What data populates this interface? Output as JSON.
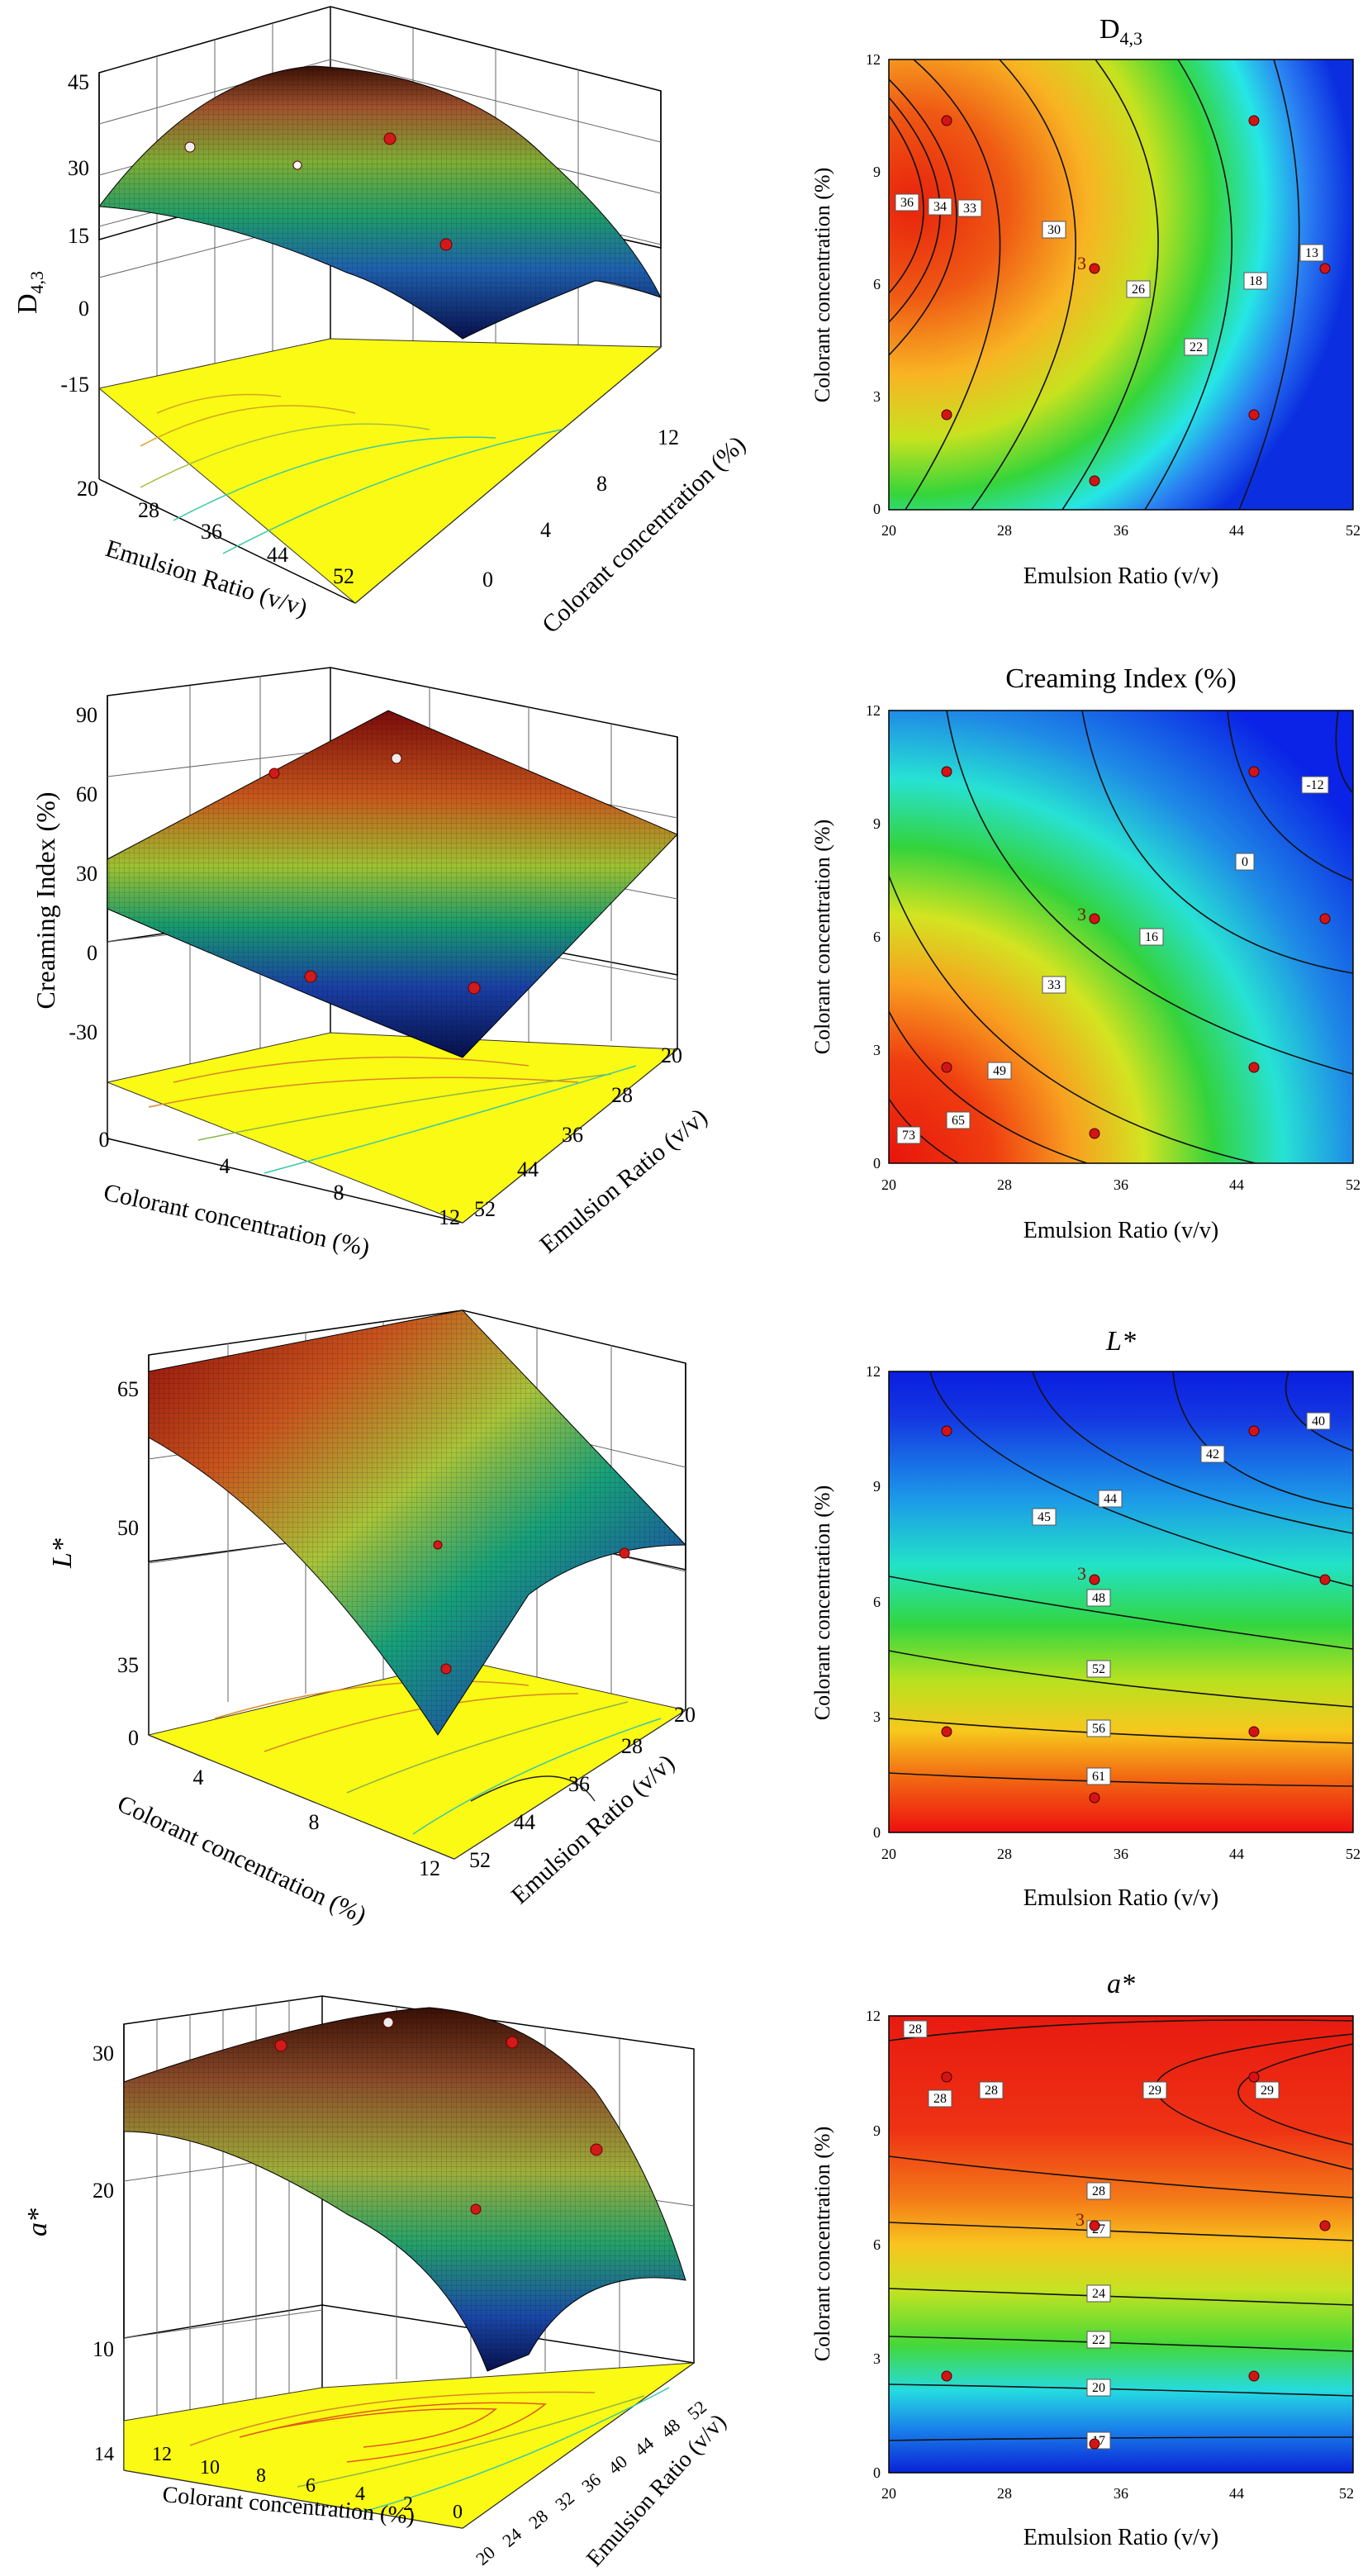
{
  "chart_data": [
    {
      "type": "surface3d",
      "panel": "a",
      "zlabel_main": "D",
      "zlabel_sub": "4,3",
      "xlabel": "Emulsion Ratio (v/v)",
      "ylabel": "Colorant concentration (%)",
      "x_ticks": [
        "20",
        "28",
        "36",
        "44",
        "52"
      ],
      "y_ticks": [
        "0",
        "4",
        "8",
        "12"
      ],
      "z_ticks": [
        "-15",
        "0",
        "15",
        "30",
        "45"
      ],
      "xlim": [
        20,
        52
      ],
      "ylim": [
        0,
        12
      ],
      "zlim": [
        -15,
        45
      ],
      "design_points": [
        {
          "x": 24,
          "y": 10.4,
          "z": 28
        },
        {
          "x": 46,
          "y": 10.4,
          "z": 20
        },
        {
          "x": 35,
          "y": 6.4,
          "z": 26
        },
        {
          "x": 50,
          "y": 6.4,
          "z": 13
        }
      ]
    },
    {
      "type": "contour",
      "panel": "b",
      "title_main": "D",
      "title_sub": "4,3",
      "xlabel": "Emulsion Ratio (v/v)",
      "ylabel": "Colorant concentration (%)",
      "x_ticks": [
        "20",
        "28",
        "36",
        "44",
        "52"
      ],
      "y_ticks": [
        "0",
        "3",
        "6",
        "9",
        "12"
      ],
      "xlim": [
        20,
        52
      ],
      "ylim": [
        0,
        12
      ],
      "contour_labels": [
        "36",
        "34",
        "33",
        "30",
        "26",
        "22",
        "18",
        "13"
      ],
      "contour_levels": [
        36,
        34,
        33,
        30,
        26,
        22,
        18,
        13
      ],
      "design_points": [
        [
          24,
          10.4
        ],
        [
          46,
          10.4
        ],
        [
          24,
          2.4
        ],
        [
          46,
          2.4
        ],
        [
          35,
          6.4
        ],
        [
          51,
          6.4
        ],
        [
          35,
          0.8
        ]
      ],
      "center_label": "3"
    },
    {
      "type": "surface3d",
      "panel": "c",
      "zlabel": "Creaming Index (%)",
      "xlabel": "Colorant concentration (%)",
      "ylabel": "Emulsion Ratio (v/v)",
      "x_ticks": [
        "0",
        "4",
        "8",
        "12"
      ],
      "y_ticks": [
        "52",
        "44",
        "36",
        "28",
        "20"
      ],
      "z_ticks": [
        "-30",
        "0",
        "30",
        "60",
        "90"
      ],
      "xlim": [
        0,
        12
      ],
      "ylim": [
        20,
        52
      ],
      "zlim": [
        -30,
        90
      ],
      "design_points": [
        {
          "x": 2,
          "y": 24,
          "z": 62
        },
        {
          "x": 6.4,
          "y": 35,
          "z": 58
        },
        {
          "x": 10.4,
          "y": 36,
          "z": 4
        },
        {
          "x": 10.4,
          "y": 46,
          "z": 2
        }
      ]
    },
    {
      "type": "contour",
      "panel": "d",
      "title": "Creaming Index (%)",
      "xlabel": "Emulsion Ratio (v/v)",
      "ylabel": "Colorant concentration (%)",
      "x_ticks": [
        "20",
        "28",
        "36",
        "44",
        "52"
      ],
      "y_ticks": [
        "0",
        "3",
        "6",
        "9",
        "12"
      ],
      "xlim": [
        20,
        52
      ],
      "ylim": [
        0,
        12
      ],
      "contour_labels": [
        "-12",
        "0",
        "16",
        "33",
        "49",
        "65",
        "73"
      ],
      "contour_levels": [
        -12,
        0,
        16,
        33,
        49,
        65,
        73
      ],
      "design_points": [
        [
          24,
          10.4
        ],
        [
          46,
          10.4
        ],
        [
          24,
          2.4
        ],
        [
          46,
          2.4
        ],
        [
          35,
          6.4
        ],
        [
          51,
          6.4
        ],
        [
          35,
          0.8
        ]
      ],
      "center_label": "3"
    },
    {
      "type": "surface3d",
      "panel": "e",
      "zlabel": "L*",
      "xlabel": "Colorant concentration (%)",
      "ylabel": "Emulsion Ratio (v/v)",
      "x_ticks": [
        "0",
        "4",
        "8",
        "12"
      ],
      "y_ticks": [
        "52",
        "44",
        "36",
        "28",
        "20"
      ],
      "z_ticks": [
        "35",
        "50",
        "65"
      ],
      "xlim": [
        0,
        12
      ],
      "ylim": [
        20,
        52
      ],
      "zlim": [
        35,
        65
      ],
      "design_points": [
        {
          "x": 6.4,
          "y": 35,
          "z": 48
        },
        {
          "x": 6.4,
          "y": 51,
          "z": 46
        },
        {
          "x": 10.4,
          "y": 46,
          "z": 40
        }
      ]
    },
    {
      "type": "contour",
      "panel": "f",
      "title": "L*",
      "xlabel": "Emulsion Ratio (v/v)",
      "ylabel": "Colorant concentration (%)",
      "x_ticks": [
        "20",
        "28",
        "36",
        "44",
        "52"
      ],
      "y_ticks": [
        "0",
        "3",
        "6",
        "9",
        "12"
      ],
      "xlim": [
        20,
        52
      ],
      "ylim": [
        0,
        12
      ],
      "contour_labels": [
        "40",
        "42",
        "44",
        "45",
        "48",
        "52",
        "56",
        "61"
      ],
      "contour_levels": [
        40,
        42,
        44,
        45,
        48,
        52,
        56,
        61
      ],
      "design_points": [
        [
          24,
          10.4
        ],
        [
          46,
          10.4
        ],
        [
          24,
          2.4
        ],
        [
          46,
          2.4
        ],
        [
          35,
          6.4
        ],
        [
          51,
          6.4
        ],
        [
          35,
          0.8
        ]
      ],
      "center_label": "3"
    },
    {
      "type": "surface3d",
      "panel": "g",
      "zlabel": "a*",
      "xlabel": "Colorant concentration (%)",
      "ylabel": "Emulsion Ratio (v/v)",
      "x_ticks": [
        "14",
        "12",
        "10",
        "8",
        "6",
        "4",
        "2",
        "0"
      ],
      "y_ticks": [
        "20",
        "24",
        "28",
        "32",
        "36",
        "40",
        "44",
        "48",
        "52"
      ],
      "z_ticks": [
        "10",
        "20",
        "30"
      ],
      "xlim": [
        0,
        14
      ],
      "ylim": [
        20,
        52
      ],
      "zlim": [
        10,
        30
      ],
      "design_points": [
        {
          "x": 10.4,
          "y": 24,
          "z": 28.5
        },
        {
          "x": 6.4,
          "y": 35,
          "z": 28
        },
        {
          "x": 10.4,
          "y": 46,
          "z": 28.7
        },
        {
          "x": 2.4,
          "y": 46,
          "z": 22
        },
        {
          "x": 2.4,
          "y": 24,
          "z": 21
        }
      ]
    },
    {
      "type": "contour",
      "panel": "h",
      "title": "a*",
      "xlabel": "Emulsion Ratio (v/v)",
      "ylabel": "Colorant concentration (%)",
      "x_ticks": [
        "20",
        "28",
        "36",
        "44",
        "52"
      ],
      "y_ticks": [
        "0",
        "3",
        "6",
        "9",
        "12"
      ],
      "xlim": [
        20,
        52
      ],
      "ylim": [
        0,
        12
      ],
      "contour_labels": [
        "28",
        "28",
        "28",
        "29",
        "29",
        "28",
        "27",
        "24",
        "22",
        "20",
        "17"
      ],
      "contour_levels": [
        28,
        28,
        28,
        29,
        29,
        28,
        27,
        24,
        22,
        20,
        17
      ],
      "design_points": [
        [
          24,
          10.4
        ],
        [
          46,
          10.4
        ],
        [
          24,
          2.4
        ],
        [
          46,
          2.4
        ],
        [
          35,
          6.4
        ],
        [
          51,
          6.4
        ],
        [
          35,
          0.8
        ]
      ],
      "center_label": "3"
    }
  ]
}
